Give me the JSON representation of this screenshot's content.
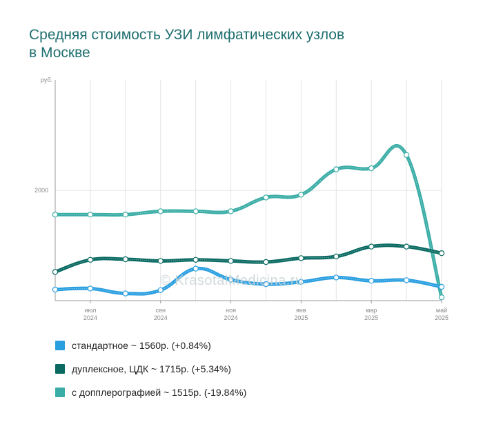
{
  "title_lines": [
    "Средняя стоимость УЗИ лимфатических узлов",
    "в Москве"
  ],
  "watermark": "© KrasotaiMedicina.ru",
  "chart_data": {
    "type": "line",
    "x": [
      "2024-06",
      "2024-07",
      "2024-08",
      "2024-09",
      "2024-10",
      "2024-11",
      "2024-12",
      "2025-01",
      "2025-02",
      "2025-03",
      "2025-04",
      "2025-05"
    ],
    "x_ticks": [
      {
        "x": "2024-07",
        "month": "июл",
        "year": "2024"
      },
      {
        "x": "2024-09",
        "month": "сен",
        "year": "2024"
      },
      {
        "x": "2024-11",
        "month": "ноя",
        "year": "2024"
      },
      {
        "x": "2025-01",
        "month": "янв",
        "year": "2025"
      },
      {
        "x": "2025-03",
        "month": "мар",
        "year": "2025"
      },
      {
        "x": "2025-05",
        "month": "май",
        "year": "2025"
      }
    ],
    "y_unit_label": "руб.",
    "y_tick_labels": [
      {
        "value": 2000,
        "label": "2000"
      }
    ],
    "ylim": [
      1000,
      3000
    ],
    "grid": true,
    "legend_position": "bottom",
    "series": [
      {
        "name": "стандартное ~ 1560р. (+0.84%)",
        "color": "#2a9fe0",
        "values": [
          1100,
          1110,
          1065,
          1095,
          1290,
          1190,
          1150,
          1170,
          1210,
          1180,
          1185,
          1125
        ]
      },
      {
        "name": "дуплексное, ЦДК ~ 1715р. (+5.34%)",
        "color": "#0a6a62",
        "values": [
          1260,
          1370,
          1375,
          1360,
          1370,
          1360,
          1350,
          1385,
          1400,
          1490,
          1490,
          1430
        ]
      },
      {
        "name": "с допплерографией ~ 1515р. (-19.84%)",
        "color": "#3aada6",
        "values": [
          1780,
          1780,
          1780,
          1810,
          1810,
          1810,
          1935,
          1960,
          2190,
          2200,
          2320,
          1030
        ]
      }
    ]
  }
}
